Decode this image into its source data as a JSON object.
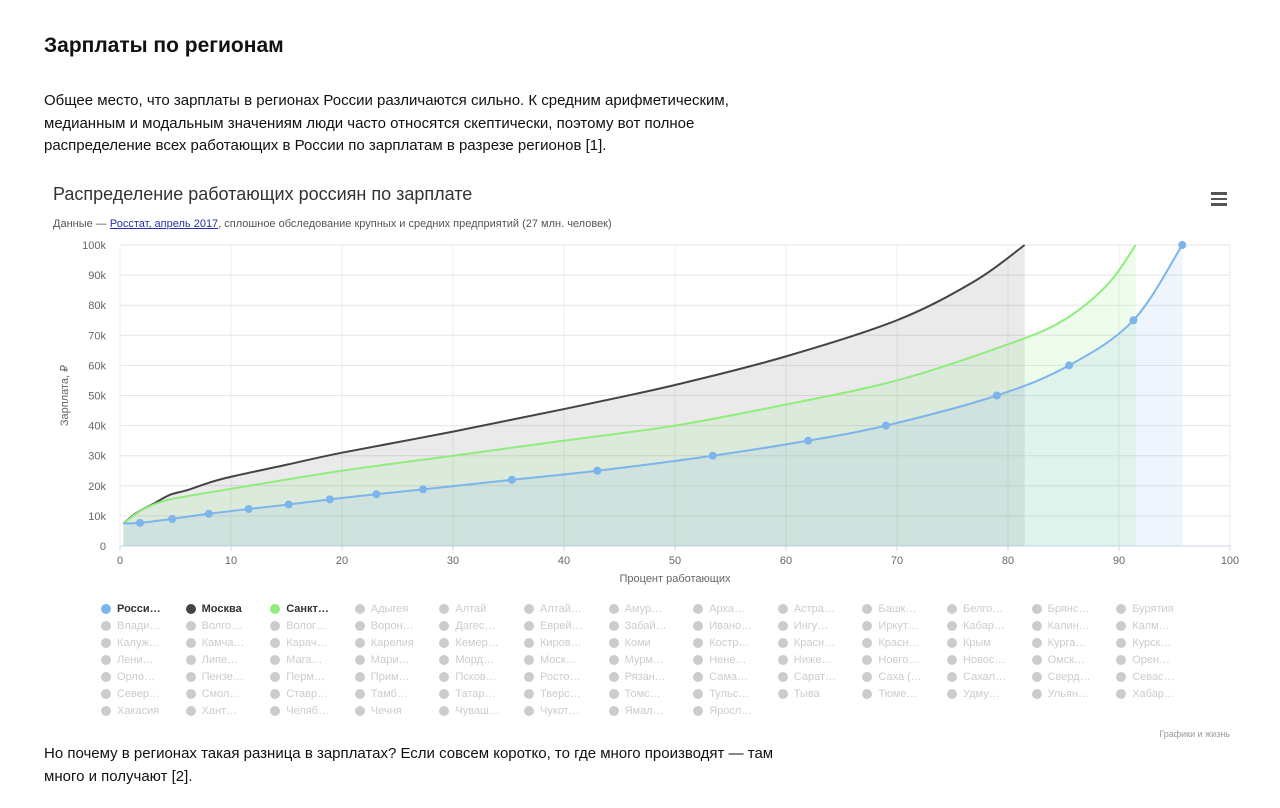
{
  "article": {
    "heading": "Зарплаты по регионам",
    "intro": "Общее место, что зарплаты в регионах России различаются сильно. К средним арифметическим, медианным и модальным значениям люди часто относятся скептически, поэтому вот полное распределение всех работающих в России по зарплатам в разрезе регионов [1].",
    "outro": "Но почему в регионах такая разница в зарплатах? Если совсем коротко, то где много производят — там много и получают [2]."
  },
  "chart_header": {
    "subtitle_prefix": "Данные — ",
    "subtitle_link": "Росстат, апрель 2017",
    "subtitle_suffix": ", сплошное обследование крупных и средних предприятий (27 млн. человек)",
    "credits": "Графики и жизнь"
  },
  "chart_data": {
    "type": "area",
    "title": "Распределение работающих россиян по зарплате",
    "xlabel": "Процент работающих",
    "ylabel": "Зарплата, ₽",
    "xlim": [
      0,
      100
    ],
    "ylim": [
      0,
      100000
    ],
    "x_ticks": [
      "0",
      "10",
      "20",
      "30",
      "40",
      "50",
      "60",
      "70",
      "80",
      "90",
      "100"
    ],
    "y_ticks": [
      "0",
      "10k",
      "20k",
      "30k",
      "40k",
      "50k",
      "60k",
      "70k",
      "80k",
      "90k",
      "100k"
    ],
    "grid": true,
    "legend_position": "bottom",
    "series": [
      {
        "name": "Россия",
        "color": "#7cb5ec",
        "markers": true,
        "points": [
          [
            0.3,
            7500
          ],
          [
            1.8,
            7700
          ],
          [
            4.7,
            9000
          ],
          [
            8,
            10700
          ],
          [
            11.6,
            12300
          ],
          [
            15.2,
            13800
          ],
          [
            18.9,
            15500
          ],
          [
            23.1,
            17200
          ],
          [
            27.3,
            18800
          ],
          [
            35.3,
            22000
          ],
          [
            43.0,
            25000
          ],
          [
            53.4,
            30000
          ],
          [
            62.0,
            35000
          ],
          [
            69.0,
            40000
          ],
          [
            79.0,
            50000
          ],
          [
            85.5,
            60000
          ],
          [
            91.3,
            75000
          ],
          [
            95.7,
            100000
          ]
        ]
      },
      {
        "name": "Москва",
        "color": "#434348",
        "markers": false,
        "points": [
          [
            0.3,
            7500
          ],
          [
            1.5,
            11000
          ],
          [
            3,
            14000
          ],
          [
            4.5,
            17000
          ],
          [
            6,
            18500
          ],
          [
            8,
            21000
          ],
          [
            10,
            23000
          ],
          [
            15,
            27000
          ],
          [
            20,
            31000
          ],
          [
            30,
            38000
          ],
          [
            40,
            45500
          ],
          [
            50,
            53500
          ],
          [
            60,
            63000
          ],
          [
            70,
            75000
          ],
          [
            77,
            88000
          ],
          [
            81.5,
            100000
          ]
        ]
      },
      {
        "name": "Санкт-Петербург",
        "color": "#90ed7d",
        "markers": false,
        "points": [
          [
            0.3,
            7500
          ],
          [
            2,
            12000
          ],
          [
            4,
            15000
          ],
          [
            6,
            16500
          ],
          [
            10,
            19000
          ],
          [
            20,
            25000
          ],
          [
            30,
            30000
          ],
          [
            40,
            35000
          ],
          [
            50,
            40000
          ],
          [
            60,
            47000
          ],
          [
            70,
            55000
          ],
          [
            80,
            67000
          ],
          [
            85,
            75000
          ],
          [
            89,
            87000
          ],
          [
            91.5,
            100000
          ]
        ]
      }
    ]
  },
  "legend_items": [
    {
      "label": "Росси…",
      "active": true,
      "color": "#7cb5ec"
    },
    {
      "label": "Москва",
      "active": true,
      "color": "#434348"
    },
    {
      "label": "Санкт…",
      "active": true,
      "color": "#90ed7d"
    },
    {
      "label": "Адыгея",
      "active": false
    },
    {
      "label": "Алтай",
      "active": false
    },
    {
      "label": "Алтай…",
      "active": false
    },
    {
      "label": "Амур…",
      "active": false
    },
    {
      "label": "Арха…",
      "active": false
    },
    {
      "label": "Астра…",
      "active": false
    },
    {
      "label": "Башк…",
      "active": false
    },
    {
      "label": "Белго…",
      "active": false
    },
    {
      "label": "Брянс…",
      "active": false
    },
    {
      "label": "Бурятия",
      "active": false
    },
    {
      "label": "Влади…",
      "active": false
    },
    {
      "label": "Волго…",
      "active": false
    },
    {
      "label": "Волог…",
      "active": false
    },
    {
      "label": "Ворон…",
      "active": false
    },
    {
      "label": "Дагес…",
      "active": false
    },
    {
      "label": "Еврей…",
      "active": false
    },
    {
      "label": "Забай…",
      "active": false
    },
    {
      "label": "Ивано…",
      "active": false
    },
    {
      "label": "Ингу…",
      "active": false
    },
    {
      "label": "Иркут…",
      "active": false
    },
    {
      "label": "Кабар…",
      "active": false
    },
    {
      "label": "Калин…",
      "active": false
    },
    {
      "label": "Калм…",
      "active": false
    },
    {
      "label": "Калуж…",
      "active": false
    },
    {
      "label": "Камча…",
      "active": false
    },
    {
      "label": "Карач…",
      "active": false
    },
    {
      "label": "Карелия",
      "active": false
    },
    {
      "label": "Кемер…",
      "active": false
    },
    {
      "label": "Киров…",
      "active": false
    },
    {
      "label": "Коми",
      "active": false
    },
    {
      "label": "Костр…",
      "active": false
    },
    {
      "label": "Красн…",
      "active": false
    },
    {
      "label": "Красн…",
      "active": false
    },
    {
      "label": "Крым",
      "active": false
    },
    {
      "label": "Курга…",
      "active": false
    },
    {
      "label": "Курск…",
      "active": false
    },
    {
      "label": "Лени…",
      "active": false
    },
    {
      "label": "Липе…",
      "active": false
    },
    {
      "label": "Мага…",
      "active": false
    },
    {
      "label": "Мари…",
      "active": false
    },
    {
      "label": "Морд…",
      "active": false
    },
    {
      "label": "Моск…",
      "active": false
    },
    {
      "label": "Мурм…",
      "active": false
    },
    {
      "label": "Нене…",
      "active": false
    },
    {
      "label": "Ниже…",
      "active": false
    },
    {
      "label": "Новго…",
      "active": false
    },
    {
      "label": "Новос…",
      "active": false
    },
    {
      "label": "Омск…",
      "active": false
    },
    {
      "label": "Орен…",
      "active": false
    },
    {
      "label": "Орло…",
      "active": false
    },
    {
      "label": "Пензе…",
      "active": false
    },
    {
      "label": "Перм…",
      "active": false
    },
    {
      "label": "Прим…",
      "active": false
    },
    {
      "label": "Псков…",
      "active": false
    },
    {
      "label": "Росто…",
      "active": false
    },
    {
      "label": "Рязан…",
      "active": false
    },
    {
      "label": "Сама…",
      "active": false
    },
    {
      "label": "Сарат…",
      "active": false
    },
    {
      "label": "Саха (…",
      "active": false
    },
    {
      "label": "Сахал…",
      "active": false
    },
    {
      "label": "Сверд…",
      "active": false
    },
    {
      "label": "Севас…",
      "active": false
    },
    {
      "label": "Север…",
      "active": false
    },
    {
      "label": "Смол…",
      "active": false
    },
    {
      "label": "Ставр…",
      "active": false
    },
    {
      "label": "Тамб…",
      "active": false
    },
    {
      "label": "Татар…",
      "active": false
    },
    {
      "label": "Тверс…",
      "active": false
    },
    {
      "label": "Томс…",
      "active": false
    },
    {
      "label": "Тульс…",
      "active": false
    },
    {
      "label": "Тыва",
      "active": false
    },
    {
      "label": "Тюме…",
      "active": false
    },
    {
      "label": "Удму…",
      "active": false
    },
    {
      "label": "Ульян…",
      "active": false
    },
    {
      "label": "Хабар…",
      "active": false
    },
    {
      "label": "Хакасия",
      "active": false
    },
    {
      "label": "Хант…",
      "active": false
    },
    {
      "label": "Челяб…",
      "active": false
    },
    {
      "label": "Чечня",
      "active": false
    },
    {
      "label": "Чуваш…",
      "active": false
    },
    {
      "label": "Чукот…",
      "active": false
    },
    {
      "label": "Ямал…",
      "active": false
    },
    {
      "label": "Яросл…",
      "active": false
    }
  ],
  "menu_icon": "hamburger-menu-icon"
}
